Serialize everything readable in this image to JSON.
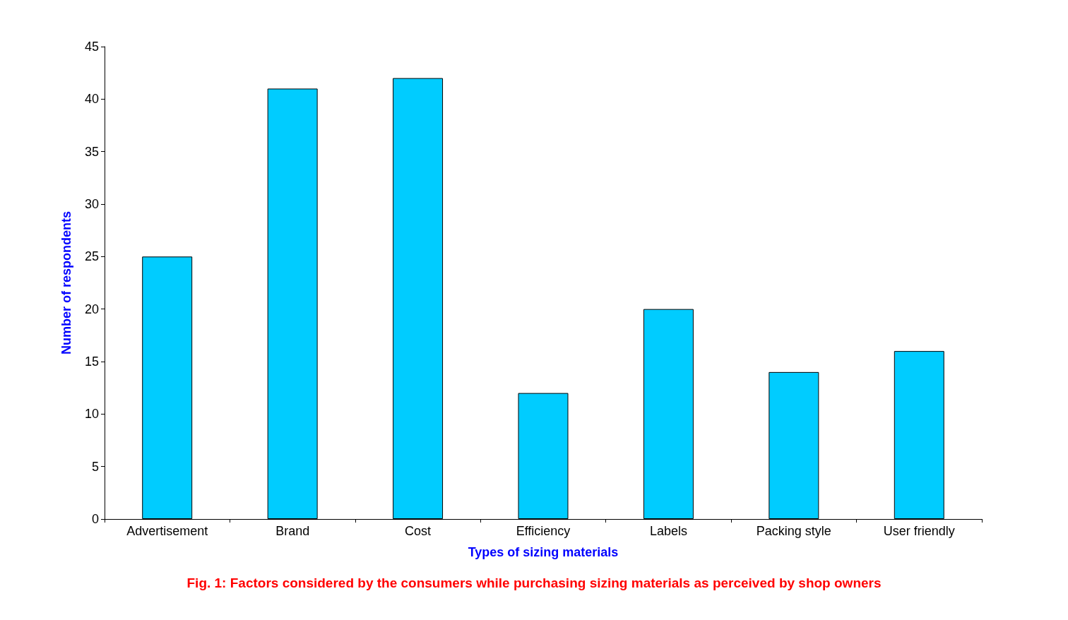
{
  "chart_data": {
    "type": "bar",
    "title": "Fig. 1: Factors considered by the consumers while purchasing sizing materials as perceived by shop owners",
    "xlabel": "Types of sizing materials",
    "ylabel": "Number of respondents",
    "categories": [
      "Advertisement",
      "Brand",
      "Cost",
      "Efficiency",
      "Labels",
      "Packing style",
      "User friendly"
    ],
    "values": [
      25,
      41,
      42,
      12,
      20,
      14,
      16
    ],
    "color": "#00ccff",
    "ylim": [
      0,
      45
    ],
    "yticks": [
      0,
      5,
      10,
      15,
      20,
      25,
      30,
      35,
      40,
      45
    ],
    "grid": false
  }
}
